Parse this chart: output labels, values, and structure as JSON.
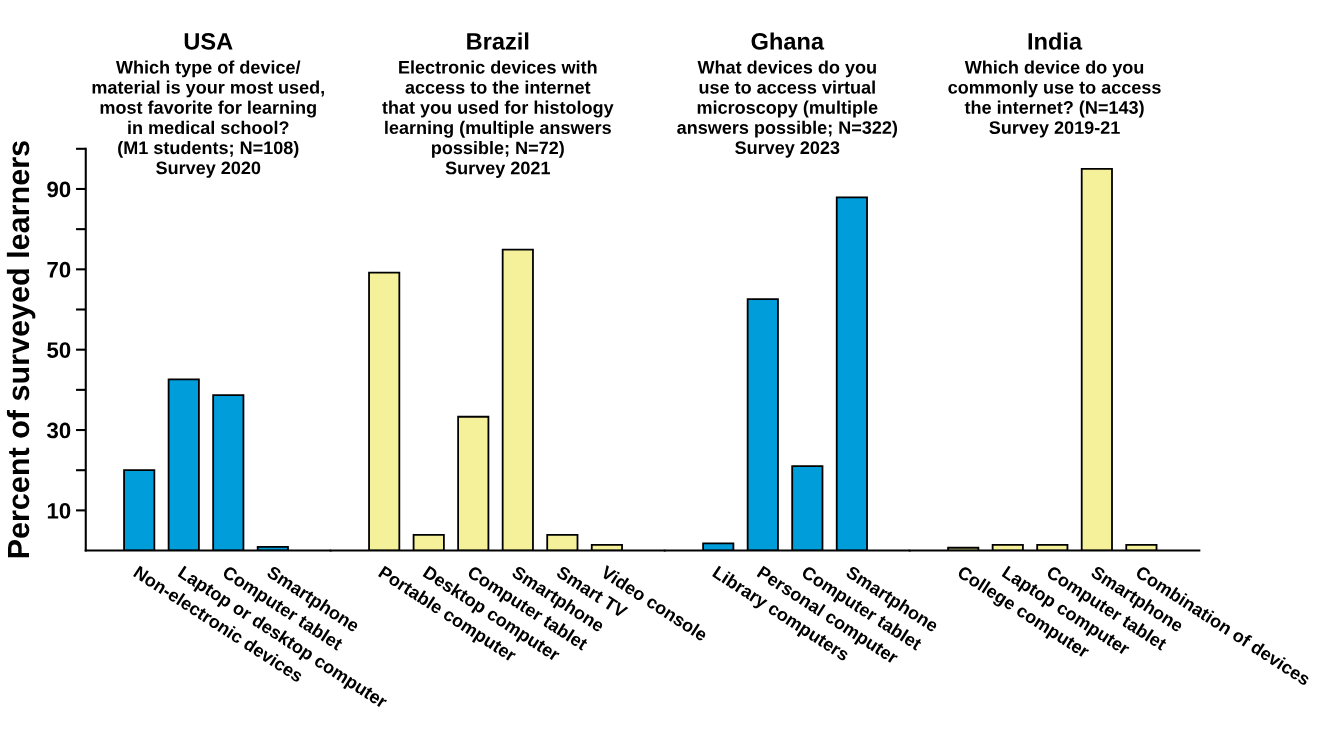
{
  "chart_data": [
    {
      "type": "bar",
      "title": "USA",
      "subtitle": "Which type of device/\nmaterial is your most used,\nmost favorite for learning\nin medical school?\n(M1 students; N=108)\nSurvey 2020",
      "ylabel": "Percent of surveyed learners",
      "categories": [
        "Non-electronic devices",
        "Laptop or desktop computer",
        "Computer tablet",
        "Smartphone"
      ],
      "values": [
        20,
        42.6,
        38.7,
        0.9
      ],
      "color": "#009ddb",
      "ylim": [
        0,
        100
      ],
      "yticks": [
        10,
        {
          "value": 20,
          "label": null
        },
        30,
        {
          "value": 40,
          "label": null
        },
        50,
        {
          "value": 60,
          "label": null
        },
        70,
        {
          "value": 80,
          "label": null
        },
        90,
        {
          "value": 100,
          "label": null
        }
      ]
    },
    {
      "type": "bar",
      "title": "Brazil",
      "subtitle": "Electronic devices with\naccess to the internet\nthat you used for histology\nlearning (multiple answers\npossible; N=72)\nSurvey 2021",
      "categories": [
        "Portable computer",
        "Desktop computer",
        "Computer tablet",
        "Smartphone",
        "Smart TV",
        "Video console"
      ],
      "values": [
        69.2,
        3.9,
        33.3,
        74.9,
        3.9,
        1.4
      ],
      "color": "#f5f09a",
      "ylim": [
        0,
        100
      ],
      "tick_labels": "x"
    },
    {
      "type": "bar",
      "title": "Ghana",
      "subtitle": "What devices do you\nuse to access virtual\nmicroscopy (multiple\nanswers possible; N=322)\nSurvey 2023",
      "categories": [
        "Library computers",
        "Personal computer",
        "Computer tablet",
        "Smartphone"
      ],
      "values": [
        1.8,
        62.6,
        21,
        87.9
      ],
      "color": "#009ddb",
      "ylim": [
        0,
        100
      ],
      "tick_labels": "x"
    },
    {
      "type": "bar",
      "title": "India",
      "subtitle": "Which device do you\ncommonly use to access\nthe internet? (N=143)\nSurvey 2019-21",
      "categories": [
        "College computer",
        "Laptop computer",
        "Computer tablet",
        "Smartphone",
        "Combination of devices"
      ],
      "values": [
        0.7,
        1.4,
        1.4,
        95,
        1.4
      ],
      "color": "#f5f09a",
      "ylim": [
        0,
        100
      ],
      "tick_labels": "x"
    }
  ]
}
